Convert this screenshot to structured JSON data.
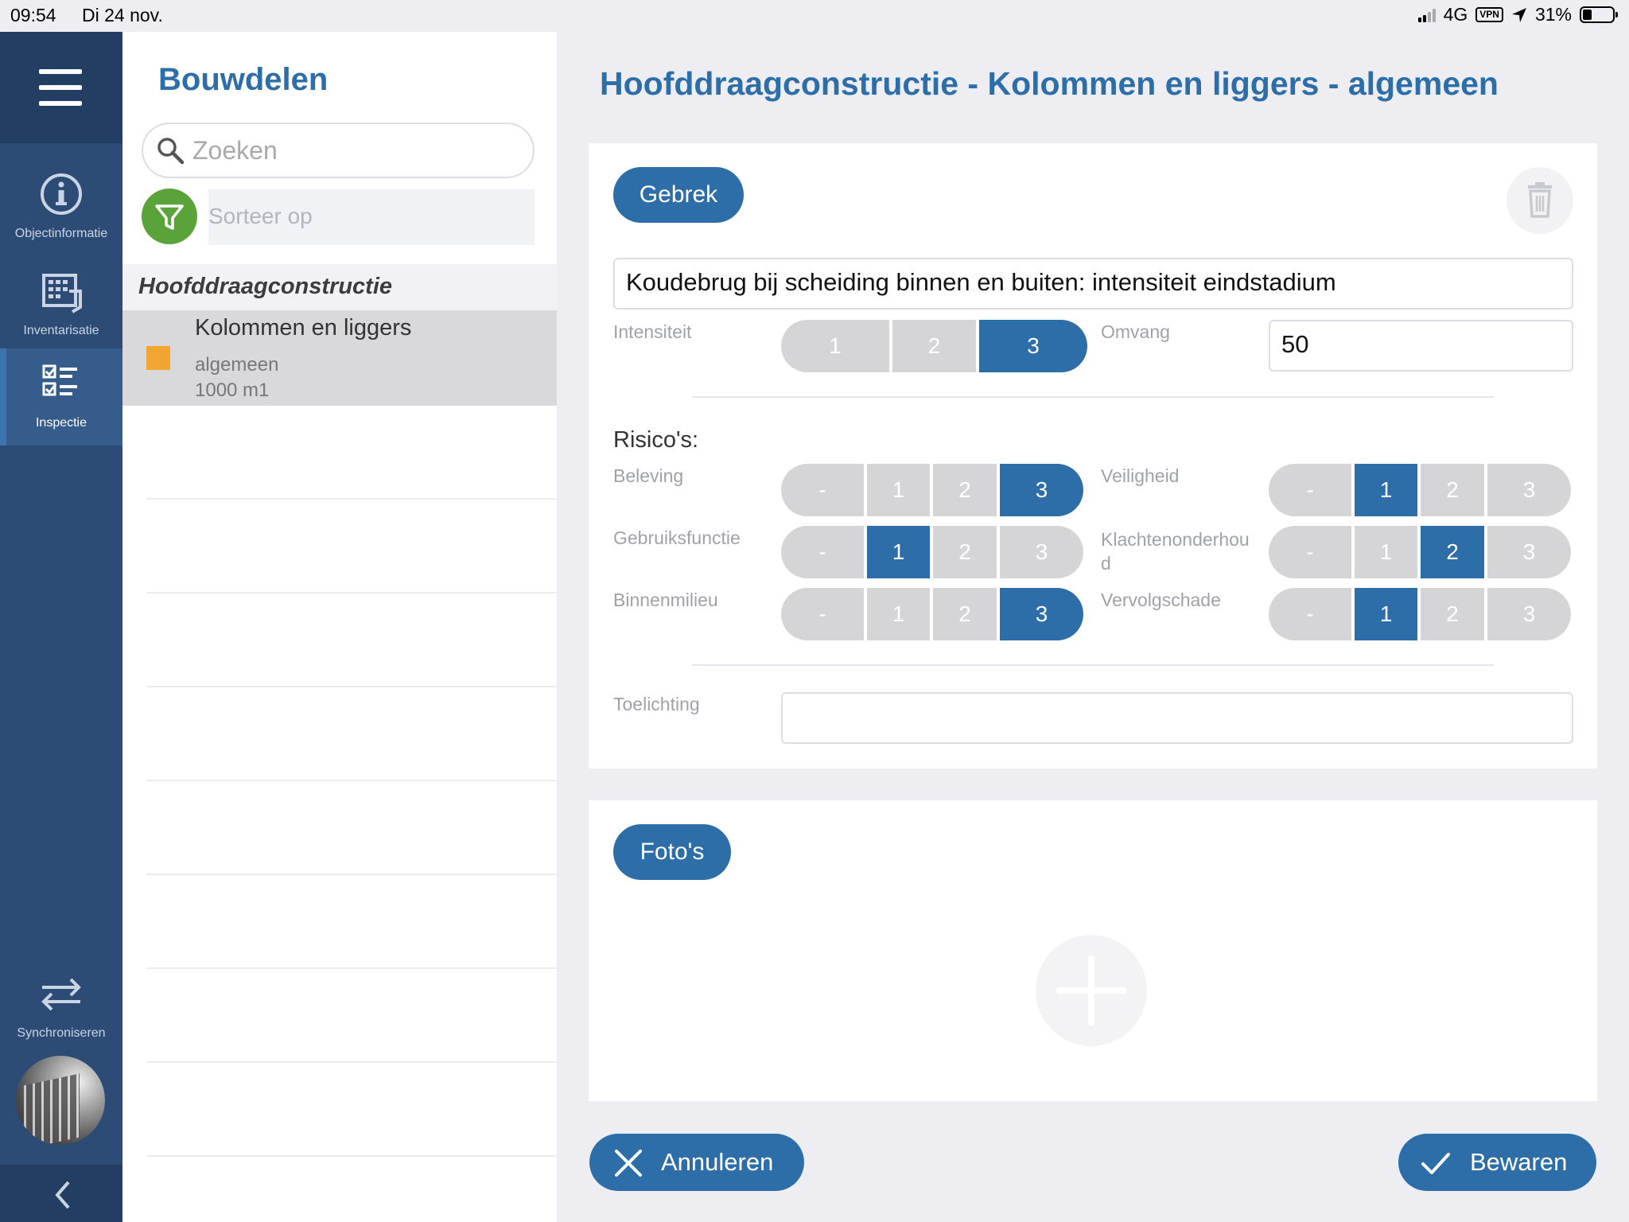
{
  "status_bar": {
    "time": "09:54",
    "date": "Di 24 nov.",
    "network": "4G",
    "vpn": "VPN",
    "battery": "31%",
    "battery_level": 0.31
  },
  "nav": {
    "items": [
      {
        "label": "Objectinformatie",
        "icon": "info-icon"
      },
      {
        "label": "Inventarisatie",
        "icon": "building-plan-icon"
      },
      {
        "label": "Inspectie",
        "icon": "checklist-icon",
        "active": true
      }
    ],
    "sync_label": "Synchroniseren"
  },
  "list": {
    "title": "Bouwdelen",
    "search_placeholder": "Zoeken",
    "sort_placeholder": "Sorteer op",
    "group": "Hoofddraagconstructie",
    "items": [
      {
        "name": "Kolommen en liggers",
        "sub": "algemeen",
        "quantity": "1000 m1",
        "color": "#f3a534"
      }
    ]
  },
  "main": {
    "title": "Hoofddraagconstructie - Kolommen en liggers - algemeen",
    "defect_button": "Gebrek",
    "defect_description": "Koudebrug bij scheiding binnen en buiten: intensiteit eindstadium",
    "intensity": {
      "label": "Intensiteit",
      "options": [
        "1",
        "2",
        "3"
      ],
      "selected": "3"
    },
    "extent": {
      "label": "Omvang",
      "value": "50"
    },
    "risks_label": "Risico's:",
    "risks": {
      "left": [
        {
          "label": "Beleving",
          "options": [
            "-",
            "1",
            "2",
            "3"
          ],
          "selected": "3"
        },
        {
          "label": "Gebruiksfunctie",
          "options": [
            "-",
            "1",
            "2",
            "3"
          ],
          "selected": "1"
        },
        {
          "label": "Binnenmilieu",
          "options": [
            "-",
            "1",
            "2",
            "3"
          ],
          "selected": "3"
        }
      ],
      "right": [
        {
          "label": "Veiligheid",
          "options": [
            "-",
            "1",
            "2",
            "3"
          ],
          "selected": "1"
        },
        {
          "label": "Klachtenonderhou d",
          "options": [
            "-",
            "1",
            "2",
            "3"
          ],
          "selected": "2"
        },
        {
          "label": "Vervolgschade",
          "options": [
            "-",
            "1",
            "2",
            "3"
          ],
          "selected": "1"
        }
      ]
    },
    "remark_label": "Toelichting",
    "remark_value": "",
    "photos_button": "Foto's",
    "cancel_label": "Annuleren",
    "save_label": "Bewaren"
  },
  "colors": {
    "primary": "#2d6ea8",
    "nav_bg": "#2c4c75",
    "filter_green": "#5aa23a",
    "segment_off": "#d5d5d7"
  }
}
